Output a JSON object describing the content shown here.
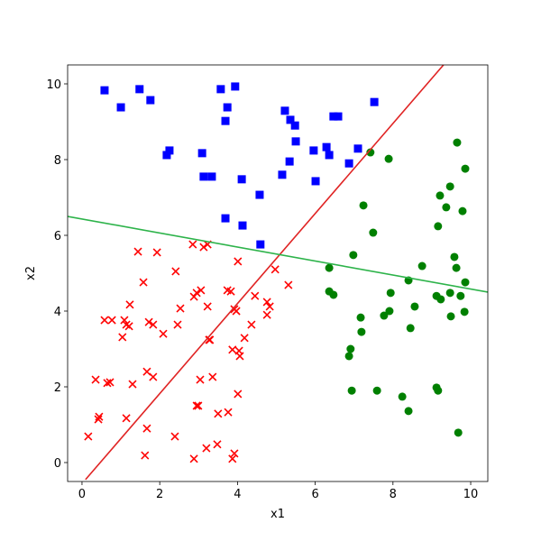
{
  "chart_data": {
    "type": "scatter",
    "xlabel": "x1",
    "ylabel": "x2",
    "xlim": [
      -0.37,
      10.44
    ],
    "ylim": [
      -0.5,
      10.5
    ],
    "xticks": [
      0,
      2,
      4,
      6,
      8,
      10
    ],
    "yticks": [
      0,
      2,
      4,
      6,
      8,
      10
    ],
    "series": [
      {
        "color": "#0000ff",
        "marker": "s",
        "x": [
          0.58,
          1.0,
          1.48,
          1.76,
          2.18,
          2.25,
          3.09,
          3.13,
          3.34,
          3.57,
          3.74,
          3.69,
          3.94,
          4.11,
          3.69,
          4.13,
          4.57,
          4.59,
          5.22,
          5.36,
          5.48,
          5.5,
          5.34,
          5.15,
          5.96,
          6.01,
          6.29,
          6.36,
          6.47,
          6.59,
          6.87,
          7.1,
          7.52
        ],
        "values": [
          9.83,
          9.38,
          9.86,
          9.57,
          8.12,
          8.24,
          8.17,
          7.55,
          7.55,
          9.86,
          9.38,
          9.02,
          9.93,
          7.48,
          6.45,
          6.26,
          7.07,
          5.76,
          9.29,
          9.05,
          8.9,
          8.48,
          7.95,
          7.6,
          8.24,
          7.43,
          8.33,
          8.12,
          9.14,
          9.14,
          7.9,
          8.29,
          9.52
        ]
      },
      {
        "color": "#008000",
        "marker": "o",
        "x": [
          7.42,
          7.89,
          9.65,
          9.86,
          9.47,
          9.21,
          9.37,
          9.79,
          7.24,
          7.49,
          9.16,
          6.98,
          9.58,
          8.75,
          6.36,
          9.63,
          9.86,
          8.4,
          6.36,
          6.47,
          7.94,
          9.12,
          9.23,
          9.47,
          9.74,
          8.56,
          7.91,
          7.77,
          7.17,
          9.49,
          9.84,
          8.45,
          7.19,
          6.91,
          6.87,
          6.94,
          7.59,
          8.24,
          9.12,
          9.16,
          8.4,
          9.68
        ],
        "values": [
          8.19,
          8.02,
          8.45,
          7.76,
          7.29,
          7.05,
          6.74,
          6.64,
          6.79,
          6.07,
          6.24,
          5.48,
          5.43,
          5.19,
          5.14,
          5.14,
          4.76,
          4.81,
          4.52,
          4.43,
          4.48,
          4.4,
          4.31,
          4.48,
          4.4,
          4.12,
          4.0,
          3.88,
          3.83,
          3.86,
          3.98,
          3.55,
          3.45,
          3.0,
          2.81,
          1.9,
          1.9,
          1.74,
          1.98,
          1.9,
          1.36,
          0.79
        ]
      },
      {
        "color": "#ff0000",
        "marker": "x",
        "x": [
          1.44,
          1.93,
          1.58,
          2.85,
          3.23,
          3.13,
          2.41,
          4.01,
          4.97,
          5.31,
          1.23,
          0.58,
          0.77,
          1.09,
          1.21,
          1.14,
          1.72,
          1.83,
          1.04,
          2.09,
          2.46,
          2.53,
          2.88,
          2.95,
          3.06,
          3.23,
          3.74,
          3.83,
          4.45,
          4.76,
          4.83,
          4.76,
          4.36,
          4.18,
          3.27,
          3.29,
          3.92,
          3.97,
          3.87,
          4.04,
          4.06,
          0.35,
          0.65,
          0.72,
          1.3,
          1.67,
          1.83,
          3.04,
          3.36,
          4.01,
          0.44,
          0.42,
          1.14,
          1.67,
          2.95,
          2.99,
          3.5,
          3.76,
          0.16,
          2.39,
          1.62,
          3.2,
          3.48,
          2.88,
          3.92,
          3.87
        ],
        "values": [
          5.57,
          5.55,
          4.76,
          5.76,
          5.76,
          5.69,
          5.05,
          5.31,
          5.1,
          4.69,
          4.17,
          3.76,
          3.76,
          3.76,
          3.6,
          3.64,
          3.71,
          3.64,
          3.31,
          3.4,
          3.64,
          4.07,
          4.38,
          4.48,
          4.55,
          4.12,
          4.55,
          4.52,
          4.4,
          4.24,
          4.12,
          3.9,
          3.64,
          3.29,
          3.24,
          3.24,
          4.05,
          4.0,
          2.98,
          2.95,
          2.81,
          2.19,
          2.1,
          2.12,
          2.07,
          2.4,
          2.26,
          2.19,
          2.26,
          1.81,
          1.21,
          1.14,
          1.17,
          0.9,
          1.5,
          1.5,
          1.29,
          1.33,
          0.69,
          0.69,
          0.19,
          0.38,
          0.48,
          0.1,
          0.24,
          0.1
        ]
      },
      {
        "type": "line",
        "color": "#e02424",
        "x": [
          0.09,
          9.3
        ],
        "values": [
          -0.45,
          10.5
        ]
      },
      {
        "type": "line",
        "color": "#2db34a",
        "x": [
          -0.37,
          10.44
        ],
        "values": [
          6.5,
          4.5
        ]
      }
    ]
  }
}
